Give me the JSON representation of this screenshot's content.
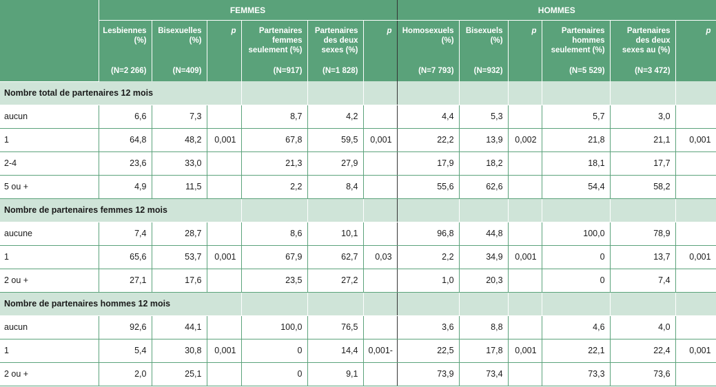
{
  "groups": {
    "women": "FEMMES",
    "men": "HOMMES"
  },
  "columns": [
    {
      "label": "Lesbiennes (%)",
      "n": "(N=2 266)"
    },
    {
      "label": "Bisexuelles (%)",
      "n": "(N=409)"
    },
    {
      "label": "p",
      "n": ""
    },
    {
      "label": "Partenaires femmes seulement (%)",
      "n": "(N=917)"
    },
    {
      "label": "Partenaires des deux sexes (%)",
      "n": "(N=1 828)"
    },
    {
      "label": "p",
      "n": ""
    },
    {
      "label": "Homosexuels (%)",
      "n": "(N=7 793)"
    },
    {
      "label": "Bisexuels (%)",
      "n": "(N=932)"
    },
    {
      "label": "p",
      "n": ""
    },
    {
      "label": "Partenaires hommes seulement (%)",
      "n": "(N=5 529)"
    },
    {
      "label": "Partenaires des deux sexes au (%)",
      "n": "(N=3 472)"
    },
    {
      "label": "p",
      "n": ""
    }
  ],
  "sections": [
    {
      "title": "Nombre total de partenaires 12 mois",
      "rows": [
        {
          "label": "aucun",
          "cells": [
            "6,6",
            "7,3",
            "",
            "8,7",
            "4,2",
            "",
            "4,4",
            "5,3",
            "",
            "5,7",
            "3,0",
            ""
          ]
        },
        {
          "label": "1",
          "cells": [
            "64,8",
            "48,2",
            "0,001",
            "67,8",
            "59,5",
            "0,001",
            "22,2",
            "13,9",
            "0,002",
            "21,8",
            "21,1",
            "0,001"
          ]
        },
        {
          "label": "2-4",
          "cells": [
            "23,6",
            "33,0",
            "",
            "21,3",
            "27,9",
            "",
            "17,9",
            "18,2",
            "",
            "18,1",
            "17,7",
            ""
          ]
        },
        {
          "label": "5 ou +",
          "cells": [
            "4,9",
            "11,5",
            "",
            "2,2",
            "8,4",
            "",
            "55,6",
            "62,6",
            "",
            "54,4",
            "58,2",
            ""
          ]
        }
      ]
    },
    {
      "title": "Nombre de partenaires femmes 12 mois",
      "rows": [
        {
          "label": "aucune",
          "cells": [
            "7,4",
            "28,7",
            "",
            "8,6",
            "10,1",
            "",
            "96,8",
            "44,8",
            "",
            "100,0",
            "78,9",
            ""
          ]
        },
        {
          "label": "1",
          "cells": [
            "65,6",
            "53,7",
            "0,001",
            "67,9",
            "62,7",
            "0,03",
            "2,2",
            "34,9",
            "0,001",
            "0",
            "13,7",
            "0,001"
          ]
        },
        {
          "label": "2 ou +",
          "cells": [
            "27,1",
            "17,6",
            "",
            "23,5",
            "27,2",
            "",
            "1,0",
            "20,3",
            "",
            "0",
            "7,4",
            ""
          ]
        }
      ]
    },
    {
      "title": "Nombre de partenaires hommes 12 mois",
      "rows": [
        {
          "label": "aucun",
          "cells": [
            "92,6",
            "44,1",
            "",
            "100,0",
            "76,5",
            "",
            "3,6",
            "8,8",
            "",
            "4,6",
            "4,0",
            ""
          ]
        },
        {
          "label": "1",
          "cells": [
            "5,4",
            "30,8",
            "0,001",
            "0",
            "14,4",
            "0,001-",
            "22,5",
            "17,8",
            "0,001",
            "22,1",
            "22,4",
            "0,001"
          ]
        },
        {
          "label": "2 ou +",
          "cells": [
            "2,0",
            "25,1",
            "",
            "0",
            "9,1",
            "",
            "73,9",
            "73,4",
            "",
            "73,3",
            "73,6",
            ""
          ]
        }
      ]
    }
  ]
}
